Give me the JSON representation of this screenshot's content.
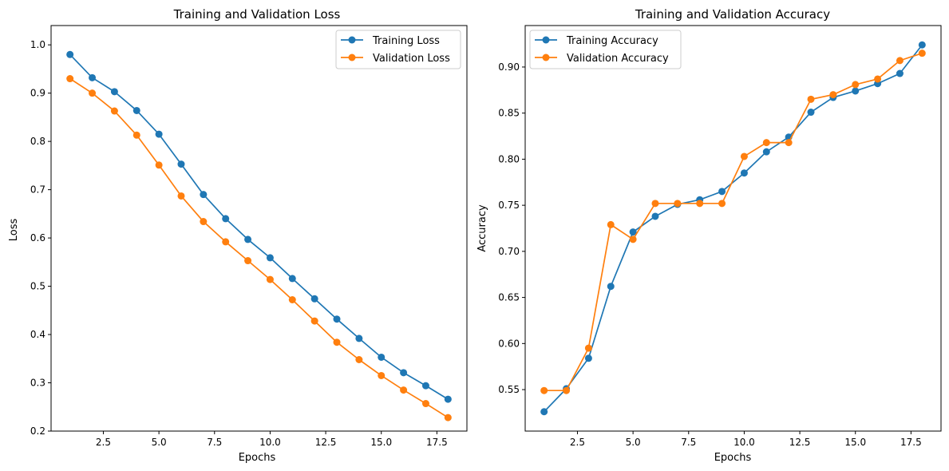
{
  "figure": {
    "background": "#ffffff"
  },
  "chart_data": [
    {
      "type": "line",
      "title": "Training and Validation Loss",
      "xlabel": "Epochs",
      "ylabel": "Loss",
      "xlim": [
        0.15,
        18.85
      ],
      "ylim": [
        0.2,
        1.04
      ],
      "xticks": [
        2.5,
        5.0,
        7.5,
        10.0,
        12.5,
        15.0,
        17.5
      ],
      "xtick_labels": [
        "2.5",
        "5.0",
        "7.5",
        "10.0",
        "12.5",
        "15.0",
        "17.5"
      ],
      "yticks": [
        0.2,
        0.3,
        0.4,
        0.5,
        0.6,
        0.7,
        0.8,
        0.9,
        1.0
      ],
      "ytick_labels": [
        "0.2",
        "0.3",
        "0.4",
        "0.5",
        "0.6",
        "0.7",
        "0.8",
        "0.9",
        "1.0"
      ],
      "legend_position": "top-right",
      "grid": false,
      "x": [
        1,
        2,
        3,
        4,
        5,
        6,
        7,
        8,
        9,
        10,
        11,
        12,
        13,
        14,
        15,
        16,
        17,
        18
      ],
      "series": [
        {
          "name": "Training Loss",
          "color": "#1f77b4",
          "values": [
            0.98,
            0.932,
            0.903,
            0.864,
            0.815,
            0.753,
            0.69,
            0.64,
            0.597,
            0.559,
            0.516,
            0.474,
            0.432,
            0.392,
            0.353,
            0.321,
            0.294,
            0.266
          ]
        },
        {
          "name": "Validation Loss",
          "color": "#ff7f0e",
          "values": [
            0.93,
            0.9,
            0.863,
            0.813,
            0.751,
            0.687,
            0.634,
            0.592,
            0.553,
            0.514,
            0.472,
            0.428,
            0.384,
            0.348,
            0.315,
            0.285,
            0.257,
            0.228
          ]
        }
      ]
    },
    {
      "type": "line",
      "title": "Training and Validation Accuracy",
      "xlabel": "Epochs",
      "ylabel": "Accuracy",
      "xlim": [
        0.15,
        18.85
      ],
      "ylim": [
        0.505,
        0.945
      ],
      "xticks": [
        2.5,
        5.0,
        7.5,
        10.0,
        12.5,
        15.0,
        17.5
      ],
      "xtick_labels": [
        "2.5",
        "5.0",
        "7.5",
        "10.0",
        "12.5",
        "15.0",
        "17.5"
      ],
      "yticks": [
        0.55,
        0.6,
        0.65,
        0.7,
        0.75,
        0.8,
        0.85,
        0.9
      ],
      "ytick_labels": [
        "0.55",
        "0.60",
        "0.65",
        "0.70",
        "0.75",
        "0.80",
        "0.85",
        "0.90"
      ],
      "legend_position": "top-left",
      "grid": false,
      "x": [
        1,
        2,
        3,
        4,
        5,
        6,
        7,
        8,
        9,
        10,
        11,
        12,
        13,
        14,
        15,
        16,
        17,
        18
      ],
      "series": [
        {
          "name": "Training Accuracy",
          "color": "#1f77b4",
          "values": [
            0.526,
            0.551,
            0.584,
            0.662,
            0.721,
            0.738,
            0.751,
            0.756,
            0.765,
            0.785,
            0.808,
            0.824,
            0.851,
            0.867,
            0.874,
            0.882,
            0.893,
            0.924
          ]
        },
        {
          "name": "Validation Accuracy",
          "color": "#ff7f0e",
          "values": [
            0.549,
            0.549,
            0.595,
            0.729,
            0.713,
            0.752,
            0.752,
            0.752,
            0.752,
            0.803,
            0.818,
            0.818,
            0.865,
            0.87,
            0.881,
            0.887,
            0.907,
            0.915
          ]
        }
      ]
    }
  ]
}
